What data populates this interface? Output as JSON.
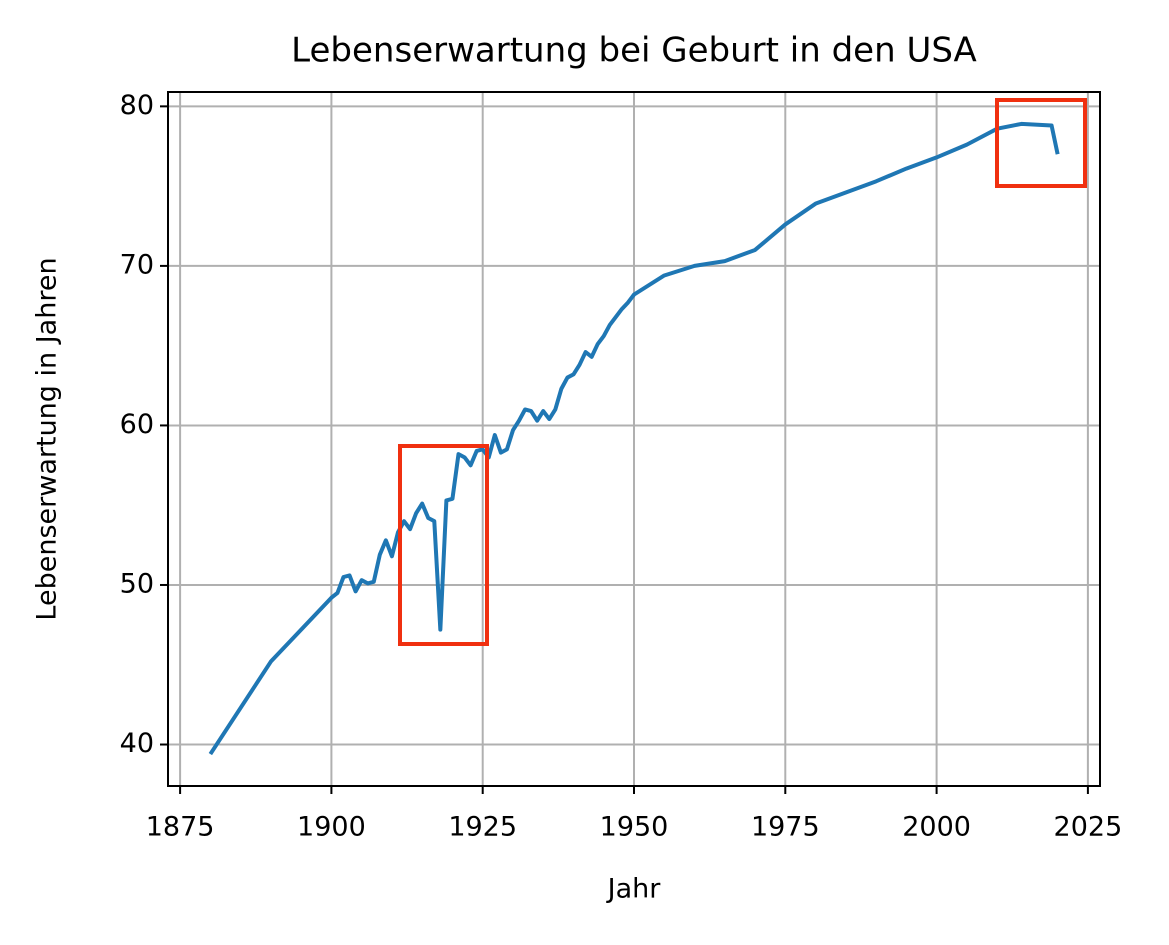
{
  "chart_data": {
    "type": "line",
    "title": "Lebenserwartung bei Geburt in den USA",
    "xlabel": "Jahr",
    "ylabel": "Lebenserwartung in Jahren",
    "x": [
      1880,
      1890,
      1900,
      1901,
      1902,
      1903,
      1904,
      1905,
      1906,
      1907,
      1908,
      1909,
      1910,
      1911,
      1912,
      1913,
      1914,
      1915,
      1916,
      1917,
      1918,
      1919,
      1920,
      1921,
      1922,
      1923,
      1924,
      1925,
      1926,
      1927,
      1928,
      1929,
      1930,
      1931,
      1932,
      1933,
      1934,
      1935,
      1936,
      1937,
      1938,
      1939,
      1940,
      1941,
      1942,
      1943,
      1944,
      1945,
      1946,
      1947,
      1948,
      1949,
      1950,
      1955,
      1960,
      1965,
      1970,
      1975,
      1980,
      1985,
      1990,
      1995,
      2000,
      2005,
      2010,
      2014,
      2019,
      2020
    ],
    "series": [
      {
        "name": "Lebenserwartung",
        "color": "#1f77b4",
        "values": [
          39.4,
          45.2,
          49.2,
          49.5,
          50.5,
          50.6,
          49.6,
          50.3,
          50.1,
          50.2,
          51.9,
          52.8,
          51.8,
          53.3,
          54.0,
          53.5,
          54.5,
          55.1,
          54.2,
          54.0,
          47.2,
          55.3,
          55.4,
          58.2,
          58.0,
          57.5,
          58.4,
          58.5,
          58.0,
          59.4,
          58.3,
          58.5,
          59.7,
          60.3,
          61.0,
          60.9,
          60.3,
          60.9,
          60.4,
          61.0,
          62.3,
          63.0,
          63.2,
          63.8,
          64.6,
          64.3,
          65.1,
          65.6,
          66.3,
          66.8,
          67.3,
          67.7,
          68.2,
          69.4,
          70.0,
          70.3,
          71.0,
          72.6,
          73.9,
          74.6,
          75.3,
          76.1,
          76.8,
          77.6,
          78.6,
          78.9,
          78.8,
          77.0
        ]
      }
    ],
    "xlim": [
      1873,
      2027
    ],
    "xticks": [
      1875,
      1900,
      1925,
      1950,
      1975,
      2000,
      2025
    ],
    "ylim": [
      37.4,
      80.9
    ],
    "yticks": [
      40,
      50,
      60,
      70,
      80
    ],
    "grid": true
  }
}
